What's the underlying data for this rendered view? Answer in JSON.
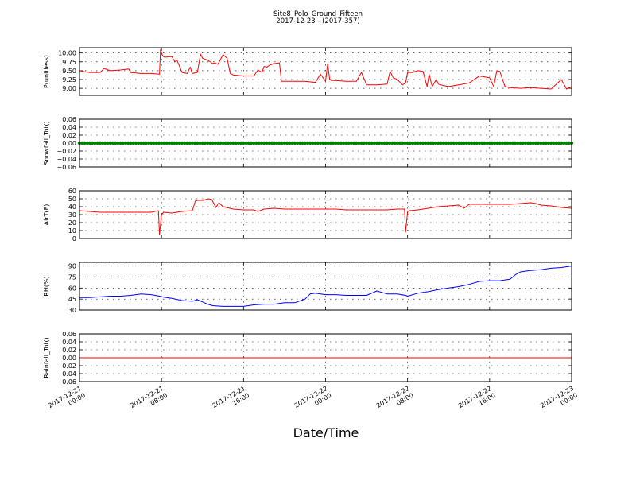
{
  "figure": {
    "title": "Site8_Polo_Ground_Fifteen",
    "subtitle": "2017-12-23 - (2017-357)",
    "xlabel": "Date/Time",
    "x_ticks": [
      {
        "line1": "2017-12-21",
        "line2": "00:00",
        "hours": 0
      },
      {
        "line1": "2017-12-21",
        "line2": "08:00",
        "hours": 8
      },
      {
        "line1": "2017-12-21",
        "line2": "16:00",
        "hours": 16
      },
      {
        "line1": "2017-12-22",
        "line2": "00:00",
        "hours": 24
      },
      {
        "line1": "2017-12-22",
        "line2": "08:00",
        "hours": 32
      },
      {
        "line1": "2017-12-22",
        "line2": "16:00",
        "hours": 40
      },
      {
        "line1": "2017-12-23",
        "line2": "00:00",
        "hours": 48
      }
    ]
  },
  "chart_data": [
    {
      "type": "line",
      "ylabel": "P(unitless)",
      "ylim": [
        8.8,
        10.15
      ],
      "yticks": [
        "9.00",
        "9.25",
        "9.50",
        "9.75",
        "10.00"
      ],
      "ytick_values": [
        9.0,
        9.25,
        9.5,
        9.75,
        10.0
      ],
      "color": "#ff0000",
      "x_hours": [
        0,
        0.5,
        1,
        2,
        2.4,
        2.8,
        3,
        4,
        4.8,
        5,
        6,
        7,
        7.8,
        7.9,
        8.1,
        8.3,
        9,
        9.3,
        9.5,
        10,
        10.5,
        10.8,
        11,
        11.5,
        11.8,
        12,
        12.5,
        13,
        13.2,
        13.5,
        14,
        14.4,
        14.7,
        15,
        16,
        17,
        17.4,
        17.8,
        18,
        18.3,
        18.5,
        19,
        19.5,
        19.7,
        20,
        21,
        22,
        23,
        23.5,
        24,
        24.2,
        24.4,
        24.6,
        24.7,
        25,
        26,
        27,
        27.5,
        28,
        28.5,
        29,
        30,
        30.3,
        30.6,
        31,
        31.5,
        31.8,
        32,
        32.5,
        33,
        33.5,
        33.9,
        34.1,
        34.4,
        34.8,
        35,
        35.5,
        36,
        37,
        38,
        39,
        40,
        40.4,
        40.7,
        41,
        41.5,
        42,
        43,
        44,
        45,
        46,
        47,
        47.5,
        48
      ],
      "y": [
        9.5,
        9.47,
        9.45,
        9.45,
        9.56,
        9.52,
        9.5,
        9.52,
        9.55,
        9.45,
        9.42,
        9.42,
        9.4,
        10.1,
        9.92,
        9.88,
        9.9,
        9.75,
        9.8,
        9.45,
        9.42,
        9.6,
        9.42,
        9.45,
        9.97,
        9.85,
        9.8,
        9.7,
        9.72,
        9.68,
        9.95,
        9.85,
        9.42,
        9.38,
        9.35,
        9.35,
        9.52,
        9.45,
        9.62,
        9.6,
        9.65,
        9.7,
        9.72,
        9.2,
        9.2,
        9.2,
        9.2,
        9.17,
        9.4,
        9.2,
        9.7,
        9.25,
        9.22,
        9.22,
        9.22,
        9.2,
        9.2,
        9.45,
        9.1,
        9.1,
        9.1,
        9.12,
        9.48,
        9.3,
        9.25,
        9.1,
        9.15,
        9.45,
        9.45,
        9.5,
        9.48,
        9.05,
        9.4,
        9.05,
        9.25,
        9.12,
        9.08,
        9.05,
        9.1,
        9.15,
        9.35,
        9.3,
        9.05,
        9.5,
        9.48,
        9.05,
        9.02,
        9.0,
        9.02,
        9.0,
        8.98,
        9.25,
        8.98,
        9.05
      ]
    },
    {
      "type": "line",
      "ylabel": "Snowfall_Tot()",
      "ylim": [
        -0.06,
        0.06
      ],
      "yticks": [
        "−0.06",
        "−0.04",
        "−0.02",
        "0.00",
        "0.02",
        "0.04",
        "0.06"
      ],
      "ytick_values": [
        -0.06,
        -0.04,
        -0.02,
        0.0,
        0.02,
        0.04,
        0.06
      ],
      "color": "#008000",
      "markers": true,
      "x_hours": [
        0,
        48
      ],
      "y": [
        0,
        0
      ]
    },
    {
      "type": "line",
      "ylabel": "AirT(F)",
      "ylim": [
        0,
        60
      ],
      "yticks": [
        "0",
        "10",
        "20",
        "30",
        "40",
        "50",
        "60"
      ],
      "ytick_values": [
        0,
        10,
        20,
        30,
        40,
        50,
        60
      ],
      "color": "#ff0000",
      "x_hours": [
        0,
        1,
        2,
        3,
        4,
        5,
        6,
        7,
        7.7,
        7.8,
        8.0,
        8.2,
        9,
        10,
        11,
        11.3,
        11.5,
        12,
        12.3,
        12.6,
        12.9,
        13.3,
        13.6,
        14,
        15,
        16,
        17,
        17.4,
        18,
        19,
        20,
        21,
        22,
        23,
        24,
        25,
        26,
        27,
        28,
        29,
        30,
        31,
        31.7,
        31.8,
        32.0,
        32.2,
        33,
        34,
        35,
        36,
        37,
        37.5,
        38,
        39,
        40,
        41,
        42,
        43,
        44,
        44.5,
        45,
        46,
        47,
        48
      ],
      "y": [
        35,
        34,
        33,
        33,
        33,
        33,
        33,
        33,
        35,
        5,
        30,
        33,
        32,
        34,
        35,
        47,
        48,
        48,
        49,
        50,
        49,
        39,
        45,
        40,
        37,
        36,
        36,
        34,
        37,
        38,
        37,
        37,
        37,
        37,
        37,
        37,
        36,
        36,
        36,
        36,
        36,
        37,
        37,
        8,
        34,
        35,
        36,
        38,
        40,
        41,
        42,
        38,
        43,
        43,
        43,
        43,
        43,
        44,
        45,
        44,
        42,
        41,
        39,
        38
      ]
    },
    {
      "type": "line",
      "ylabel": "RH(%)",
      "ylim": [
        30,
        95
      ],
      "yticks": [
        "30",
        "45",
        "60",
        "75",
        "90"
      ],
      "ytick_values": [
        30,
        45,
        60,
        75,
        90
      ],
      "color": "#0000ff",
      "x_hours": [
        0,
        1,
        2,
        3,
        4,
        5,
        6,
        7,
        7.8,
        8,
        9,
        10,
        11,
        11.5,
        12,
        12.5,
        13,
        14,
        15,
        16,
        17,
        18,
        19,
        20,
        21,
        22,
        22.5,
        23,
        24,
        25,
        26,
        27,
        28,
        29,
        30,
        31,
        31.8,
        32,
        33,
        34,
        35,
        36,
        37,
        38,
        39,
        40,
        41,
        42,
        42.5,
        43,
        44,
        45,
        46,
        47,
        48
      ],
      "y": [
        47,
        47,
        48,
        49,
        49,
        50,
        52,
        51,
        49,
        48,
        46,
        43,
        42,
        44,
        41,
        38,
        36,
        35,
        35,
        35,
        37,
        38,
        38,
        40,
        40,
        45,
        52,
        53,
        51,
        51,
        50,
        50,
        50,
        56,
        52,
        52,
        50,
        49,
        53,
        55,
        58,
        60,
        62,
        65,
        69,
        70,
        70,
        72,
        78,
        82,
        84,
        85,
        87,
        88,
        90
      ]
    },
    {
      "type": "line",
      "ylabel": "Rainfall_Tot()",
      "ylim": [
        -0.06,
        0.06
      ],
      "yticks": [
        "−0.06",
        "−0.04",
        "−0.02",
        "0.00",
        "0.02",
        "0.04",
        "0.06"
      ],
      "ytick_values": [
        -0.06,
        -0.04,
        -0.02,
        0.0,
        0.02,
        0.04,
        0.06
      ],
      "color": "#ff0000",
      "x_hours": [
        0,
        48
      ],
      "y": [
        0,
        0
      ]
    }
  ]
}
